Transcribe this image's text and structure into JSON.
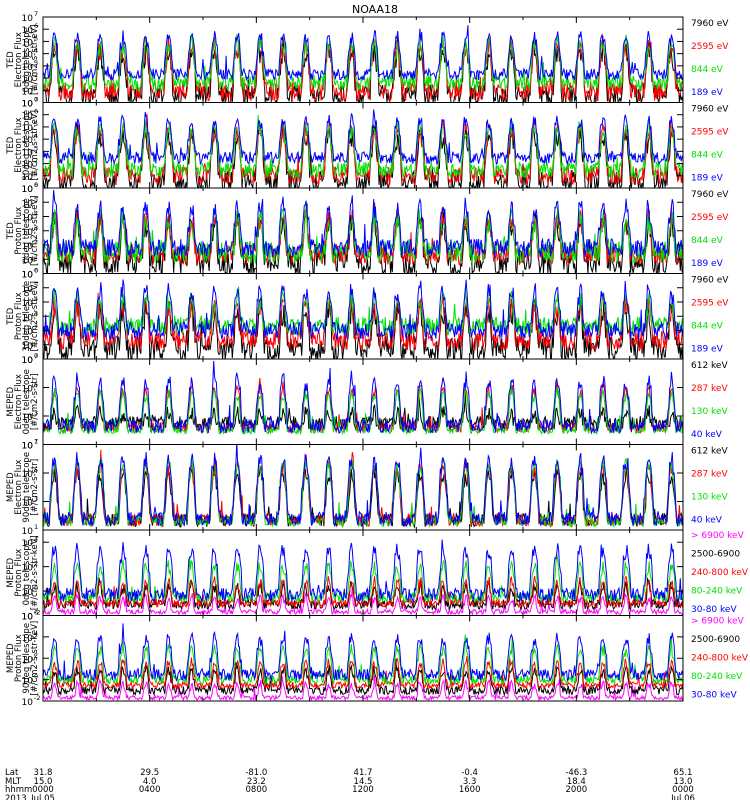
{
  "title": "NOAA18",
  "chart_data": [
    {
      "type": "line",
      "ylabel": [
        "TED",
        "Electron Flux",
        "0deg telescope",
        "[#/cm2-s-str-eV]"
      ],
      "yscale": "log",
      "ylim": [
        1,
        10000000
      ],
      "yticks": [
        {
          "v": 1,
          "e": "0"
        },
        {
          "v": 10,
          "e": "1"
        },
        {
          "v": 100,
          "e": "2"
        },
        {
          "v": 1000,
          "e": "3"
        },
        {
          "v": 10000,
          "e": "4"
        },
        {
          "v": 100000,
          "e": "5"
        },
        {
          "v": 1000000,
          "e": "6"
        },
        {
          "v": 10000000,
          "e": "7"
        }
      ],
      "series": [
        {
          "name": "7960 eV",
          "color": "#000000",
          "base": 3,
          "amp": 20000,
          "noise": 2.0,
          "seed": 11
        },
        {
          "name": "2595 eV",
          "color": "#ff0000",
          "base": 8,
          "amp": 50000,
          "noise": 1.6,
          "seed": 12
        },
        {
          "name": "844 eV",
          "color": "#00e000",
          "base": 40,
          "amp": 80000,
          "noise": 1.3,
          "seed": 13
        },
        {
          "name": "189 eV",
          "color": "#0000ff",
          "base": 200,
          "amp": 400000,
          "noise": 0.9,
          "seed": 14
        }
      ]
    },
    {
      "type": "line",
      "ylabel": [
        "TED",
        "Electron Flux",
        "30deg telescope",
        "[#/cm2-s-str-eV]"
      ],
      "yscale": "log",
      "ylim": [
        1,
        10000000
      ],
      "yticks": [
        {
          "v": 1,
          "e": "0"
        },
        {
          "v": 10,
          "e": "1"
        },
        {
          "v": 100,
          "e": "2"
        },
        {
          "v": 1000,
          "e": "3"
        },
        {
          "v": 10000,
          "e": "4"
        },
        {
          "v": 100000,
          "e": "5"
        },
        {
          "v": 1000000,
          "e": "6"
        },
        {
          "v": 10000000,
          "e": "7"
        }
      ],
      "series": [
        {
          "name": "7960 eV",
          "color": "#000000",
          "base": 3,
          "amp": 30000,
          "noise": 2.0,
          "seed": 21
        },
        {
          "name": "2595 eV",
          "color": "#ff0000",
          "base": 10,
          "amp": 60000,
          "noise": 1.5,
          "seed": 22
        },
        {
          "name": "844 eV",
          "color": "#00e000",
          "base": 30,
          "amp": 90000,
          "noise": 1.3,
          "seed": 23
        },
        {
          "name": "189 eV",
          "color": "#0000ff",
          "base": 300,
          "amp": 500000,
          "noise": 1.0,
          "seed": 24
        }
      ]
    },
    {
      "type": "line",
      "ylabel": [
        "TED",
        "Proton Flux",
        "0deg telescope",
        "[#/cm2-s-str-eV]"
      ],
      "yscale": "log",
      "ylim": [
        1,
        1000000
      ],
      "yticks": [
        {
          "v": 1,
          "e": "0"
        },
        {
          "v": 10,
          "e": "1"
        },
        {
          "v": 100,
          "e": "2"
        },
        {
          "v": 1000,
          "e": "3"
        },
        {
          "v": 10000,
          "e": "4"
        },
        {
          "v": 100000,
          "e": "5"
        },
        {
          "v": 1000000,
          "e": "6"
        }
      ],
      "series": [
        {
          "name": "7960 eV",
          "color": "#000000",
          "base": 5,
          "amp": 5000,
          "noise": 1.8,
          "seed": 31
        },
        {
          "name": "2595 eV",
          "color": "#ff0000",
          "base": 20,
          "amp": 10000,
          "noise": 1.4,
          "seed": 32
        },
        {
          "name": "844 eV",
          "color": "#00e000",
          "base": 30,
          "amp": 8000,
          "noise": 1.6,
          "seed": 33
        },
        {
          "name": "189 eV",
          "color": "#0000ff",
          "base": 60,
          "amp": 60000,
          "noise": 1.3,
          "seed": 34
        }
      ]
    },
    {
      "type": "line",
      "ylabel": [
        "TED",
        "Proton Flux",
        "30deg telescope",
        "[#/cm2-s-str-eV]"
      ],
      "yscale": "log",
      "ylim": [
        1,
        1000000
      ],
      "yticks": [
        {
          "v": 1,
          "e": "0"
        },
        {
          "v": 10,
          "e": "1"
        },
        {
          "v": 100,
          "e": "2"
        },
        {
          "v": 1000,
          "e": "3"
        },
        {
          "v": 10000,
          "e": "4"
        },
        {
          "v": 100000,
          "e": "5"
        },
        {
          "v": 1000000,
          "e": "6"
        }
      ],
      "series": [
        {
          "name": "7960 eV",
          "color": "#000000",
          "base": 5,
          "amp": 3000,
          "noise": 1.8,
          "seed": 41
        },
        {
          "name": "2595 eV",
          "color": "#ff0000",
          "base": 20,
          "amp": 8000,
          "noise": 1.4,
          "seed": 42
        },
        {
          "name": "844 eV",
          "color": "#00e000",
          "base": 200,
          "amp": 20000,
          "noise": 1.3,
          "seed": 43
        },
        {
          "name": "189 eV",
          "color": "#0000ff",
          "base": 100,
          "amp": 80000,
          "noise": 1.2,
          "seed": 44
        }
      ]
    },
    {
      "type": "line",
      "ylabel": [
        "MEPED",
        "Electron Flux",
        "0deg telescope",
        "[#/cm2-s-str]"
      ],
      "yscale": "log",
      "ylim": [
        10,
        10000000
      ],
      "yticks": [
        {
          "v": 10,
          "e": "1"
        },
        {
          "v": 1000,
          "e": "3"
        },
        {
          "v": 100000,
          "e": "5"
        },
        {
          "v": 10000000,
          "e": "7"
        }
      ],
      "series": [
        {
          "name": "612 keV",
          "color": "#000000",
          "base": 300,
          "amp": 2000,
          "noise": 1.0,
          "seed": 51
        },
        {
          "name": "287 keV",
          "color": "#ff0000",
          "base": 150,
          "amp": 100000,
          "noise": 0.7,
          "seed": 52
        },
        {
          "name": "130 keV",
          "color": "#00e000",
          "base": 100,
          "amp": 50000,
          "noise": 0.5,
          "seed": 53
        },
        {
          "name": "40 keV",
          "color": "#0000ff",
          "base": 200,
          "amp": 400000,
          "noise": 1.0,
          "seed": 54
        }
      ]
    },
    {
      "type": "line",
      "ylabel": [
        "MEPED",
        "Electron Flux",
        "90deg telescope",
        "[#/cm2-s-str]"
      ],
      "yscale": "log",
      "ylim": [
        10,
        10000000
      ],
      "yticks": [
        {
          "v": 10,
          "e": "1"
        },
        {
          "v": 1000,
          "e": "3"
        },
        {
          "v": 100000,
          "e": "5"
        },
        {
          "v": 10000000,
          "e": "7"
        }
      ],
      "series": [
        {
          "name": "612 keV",
          "color": "#000000",
          "base": 50,
          "amp": 100000,
          "noise": 1.0,
          "seed": 61
        },
        {
          "name": "287 keV",
          "color": "#ff0000",
          "base": 50,
          "amp": 300000,
          "noise": 0.9,
          "seed": 62
        },
        {
          "name": "130 keV",
          "color": "#00e000",
          "base": 40,
          "amp": 500000,
          "noise": 0.7,
          "seed": 63
        },
        {
          "name": "40 keV",
          "color": "#0000ff",
          "base": 60,
          "amp": 1000000,
          "noise": 1.0,
          "seed": 64
        }
      ]
    },
    {
      "type": "line",
      "ylabel": [
        "MEPED",
        "Proton Flux",
        "0deg telescope",
        "[#/cm2-s-str-keV]"
      ],
      "yscale": "log",
      "ylim": [
        0.01,
        100000
      ],
      "yticks": [
        {
          "v": 0.01,
          "e": "-2"
        },
        {
          "v": 1,
          "e": "0"
        },
        {
          "v": 100,
          "e": "2"
        },
        {
          "v": 10000,
          "e": "4"
        }
      ],
      "series": [
        {
          "name": "> 6900 keV",
          "color": "#ff00ff",
          "base": 0.02,
          "amp": 0.4,
          "noise": 0.4,
          "seed": 71
        },
        {
          "name": "2500-6900",
          "color": "#000000",
          "base": 0.08,
          "amp": 3,
          "noise": 0.8,
          "seed": 72
        },
        {
          "name": "240-800 keV",
          "color": "#ff0000",
          "base": 0.1,
          "amp": 8,
          "noise": 0.6,
          "seed": 73
        },
        {
          "name": "80-240 keV",
          "color": "#00e000",
          "base": 0.3,
          "amp": 150,
          "noise": 0.8,
          "seed": 74
        },
        {
          "name": "30-80 keV",
          "color": "#0000ff",
          "base": 0.5,
          "amp": 3000,
          "noise": 1.1,
          "seed": 75
        }
      ]
    },
    {
      "type": "line",
      "ylabel": [
        "MEPED",
        "Proton Flux",
        "90deg telescope",
        "[#/cm2-s-str-keV]"
      ],
      "yscale": "log",
      "ylim": [
        0.01,
        1000000
      ],
      "yticks": [
        {
          "v": 0.01,
          "e": "-2"
        },
        {
          "v": 1,
          "e": "0"
        },
        {
          "v": 100,
          "e": "2"
        },
        {
          "v": 10000,
          "e": "4"
        },
        {
          "v": 1000000,
          "e": "6"
        }
      ],
      "series": [
        {
          "name": "> 6900 keV",
          "color": "#ff00ff",
          "base": 0.02,
          "amp": 0.5,
          "noise": 0.4,
          "seed": 81
        },
        {
          "name": "2500-6900",
          "color": "#000000",
          "base": 0.1,
          "amp": 10,
          "noise": 0.8,
          "seed": 82
        },
        {
          "name": "240-800 keV",
          "color": "#ff0000",
          "base": 0.3,
          "amp": 50,
          "noise": 0.6,
          "seed": 83
        },
        {
          "name": "80-240 keV",
          "color": "#00e000",
          "base": 1,
          "amp": 1000,
          "noise": 0.8,
          "seed": 84
        },
        {
          "name": "30-80 keV",
          "color": "#0000ff",
          "base": 3,
          "amp": 10000,
          "noise": 1.1,
          "seed": 85
        }
      ]
    }
  ],
  "time_axis": {
    "xlim_hours": [
      0,
      24
    ],
    "row_labels": [
      "Lat",
      "MLT",
      "hhmm",
      "2013"
    ],
    "ticks": [
      {
        "hour": 0,
        "values": [
          "31.8",
          "15.0",
          "0000",
          "Jul 05"
        ]
      },
      {
        "hour": 4,
        "values": [
          "29.5",
          "4.0",
          "0400",
          ""
        ]
      },
      {
        "hour": 8,
        "values": [
          "-81.0",
          "23.2",
          "0800",
          ""
        ]
      },
      {
        "hour": 12,
        "values": [
          "41.7",
          "14.5",
          "1200",
          ""
        ]
      },
      {
        "hour": 16,
        "values": [
          "-0.4",
          "3.3",
          "1600",
          ""
        ]
      },
      {
        "hour": 20,
        "values": [
          "-46.3",
          "18.4",
          "2000",
          ""
        ]
      },
      {
        "hour": 24,
        "values": [
          "65.1",
          "13.0",
          "0000",
          "Jul 06"
        ]
      }
    ]
  },
  "orbit_passes": 28
}
